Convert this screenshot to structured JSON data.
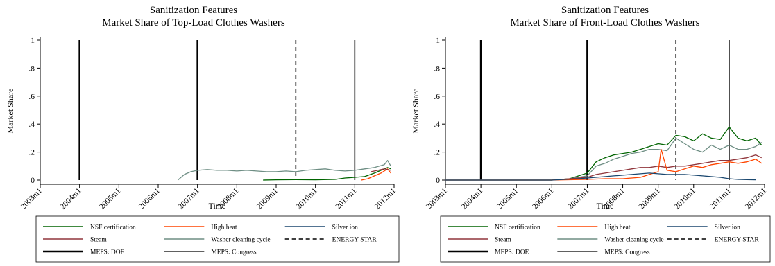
{
  "colors": {
    "nsf": "#006400",
    "high_heat": "#ff4500",
    "silver_ion": "#1a476f",
    "steam": "#90353b",
    "washer_cleaning": "#6e8e84",
    "marker": "#000000"
  },
  "chart_data": [
    {
      "type": "line",
      "title": "Sanitization Features",
      "subtitle": "Market Share of Top-Load Clothes Washers",
      "xlabel": "Time",
      "ylabel": "Market Share",
      "x_ticks": [
        "2003m1",
        "2004m1",
        "2005m1",
        "2006m1",
        "2007m1",
        "2008m1",
        "2009m1",
        "2010m1",
        "2011m1",
        "2012m1"
      ],
      "y_ticks": [
        "0",
        ".2",
        ".4",
        ".6",
        ".8",
        "1"
      ],
      "xlim": [
        "2003m1",
        "2012m1"
      ],
      "ylim": [
        0,
        1
      ],
      "grid": false,
      "legend_position": "bottom",
      "legend": [
        "NSF certification",
        "High heat",
        "Silver ion",
        "Steam",
        "Washer cleaning cycle",
        "ENERGY STAR",
        "MEPS: DOE",
        "MEPS: Congress"
      ],
      "vertical_markers": [
        {
          "name": "MEPS: DOE",
          "x": "2004m1",
          "style": "thick"
        },
        {
          "name": "MEPS: DOE",
          "x": "2007m1",
          "style": "thick"
        },
        {
          "name": "ENERGY STAR",
          "x": "2009m7",
          "style": "dashed"
        },
        {
          "name": "MEPS: Congress",
          "x": "2011m1",
          "style": "thin"
        }
      ],
      "series": [
        {
          "name": "Washer cleaning cycle",
          "color": "#6e8e84",
          "x": [
            "2006m7",
            "2006m9",
            "2006m11",
            "2007m1",
            "2007m4",
            "2007m7",
            "2007m10",
            "2008m1",
            "2008m4",
            "2008m7",
            "2008m10",
            "2009m1",
            "2009m4",
            "2009m7",
            "2009m10",
            "2010m1",
            "2010m4",
            "2010m7",
            "2010m10",
            "2011m1",
            "2011m4",
            "2011m7",
            "2011m10",
            "2011m11",
            "2011m12"
          ],
          "y": [
            0,
            0.04,
            0.06,
            0.07,
            0.075,
            0.07,
            0.07,
            0.065,
            0.07,
            0.065,
            0.06,
            0.06,
            0.065,
            0.06,
            0.07,
            0.075,
            0.08,
            0.07,
            0.065,
            0.07,
            0.08,
            0.09,
            0.11,
            0.14,
            0.1
          ]
        },
        {
          "name": "NSF certification",
          "color": "#006400",
          "x": [
            "2008m9",
            "2009m1",
            "2009m7",
            "2010m1",
            "2010m7",
            "2010m10",
            "2011m1",
            "2011m4",
            "2011m7",
            "2011m9",
            "2011m11",
            "2011m12"
          ],
          "y": [
            0,
            0.002,
            0.003,
            0.002,
            0.005,
            0.015,
            0.02,
            0.025,
            0.05,
            0.07,
            0.09,
            0.08
          ]
        },
        {
          "name": "High heat",
          "color": "#ff4500",
          "x": [
            "2011m3",
            "2011m5",
            "2011m7",
            "2011m9",
            "2011m11",
            "2011m12"
          ],
          "y": [
            0,
            0.01,
            0.03,
            0.05,
            0.08,
            0.05
          ]
        },
        {
          "name": "Steam",
          "color": "#90353b",
          "x": [
            "2011m6",
            "2011m8",
            "2011m10",
            "2011m12"
          ],
          "y": [
            0.06,
            0.07,
            0.08,
            0.07
          ]
        }
      ]
    },
    {
      "type": "line",
      "title": "Sanitization Features",
      "subtitle": "Market Share of Front-Load Clothes Washers",
      "xlabel": "Time",
      "ylabel": "Market Share",
      "x_ticks": [
        "2003m1",
        "2004m1",
        "2005m1",
        "2006m1",
        "2007m1",
        "2008m1",
        "2009m1",
        "2010m1",
        "2011m1",
        "2012m1"
      ],
      "y_ticks": [
        "0",
        ".2",
        ".4",
        ".6",
        ".8",
        "1"
      ],
      "xlim": [
        "2003m1",
        "2012m1"
      ],
      "ylim": [
        0,
        1
      ],
      "grid": false,
      "legend_position": "bottom",
      "legend": [
        "NSF certification",
        "High heat",
        "Silver ion",
        "Steam",
        "Washer cleaning cycle",
        "ENERGY STAR",
        "MEPS: DOE",
        "MEPS: Congress"
      ],
      "vertical_markers": [
        {
          "name": "MEPS: DOE",
          "x": "2004m1",
          "style": "thick"
        },
        {
          "name": "MEPS: DOE",
          "x": "2007m1",
          "style": "thick"
        },
        {
          "name": "ENERGY STAR",
          "x": "2009m7",
          "style": "dashed"
        },
        {
          "name": "MEPS: Congress",
          "x": "2011m1",
          "style": "thin"
        }
      ],
      "series": [
        {
          "name": "NSF certification",
          "color": "#006400",
          "x": [
            "2003m1",
            "2004m1",
            "2005m1",
            "2006m1",
            "2006m7",
            "2007m1",
            "2007m4",
            "2007m7",
            "2007m10",
            "2008m1",
            "2008m4",
            "2008m7",
            "2008m10",
            "2009m1",
            "2009m4",
            "2009m7",
            "2009m10",
            "2010m1",
            "2010m4",
            "2010m7",
            "2010m10",
            "2011m1",
            "2011m4",
            "2011m7",
            "2011m10",
            "2011m12"
          ],
          "y": [
            0,
            0,
            0,
            0,
            0.01,
            0.05,
            0.13,
            0.16,
            0.18,
            0.19,
            0.2,
            0.22,
            0.24,
            0.26,
            0.25,
            0.32,
            0.31,
            0.28,
            0.33,
            0.3,
            0.29,
            0.38,
            0.3,
            0.28,
            0.3,
            0.25
          ]
        },
        {
          "name": "Washer cleaning cycle",
          "color": "#6e8e84",
          "x": [
            "2003m1",
            "2004m1",
            "2005m1",
            "2006m1",
            "2006m7",
            "2007m1",
            "2007m4",
            "2007m7",
            "2007m10",
            "2008m1",
            "2008m4",
            "2008m7",
            "2008m10",
            "2009m1",
            "2009m4",
            "2009m7",
            "2009m10",
            "2010m1",
            "2010m4",
            "2010m7",
            "2010m10",
            "2011m1",
            "2011m4",
            "2011m7",
            "2011m10",
            "2011m12"
          ],
          "y": [
            0,
            0,
            0,
            0,
            0.01,
            0.03,
            0.1,
            0.12,
            0.15,
            0.17,
            0.19,
            0.2,
            0.22,
            0.22,
            0.21,
            0.3,
            0.26,
            0.22,
            0.2,
            0.25,
            0.22,
            0.25,
            0.22,
            0.22,
            0.24,
            0.27
          ]
        },
        {
          "name": "Steam",
          "color": "#90353b",
          "x": [
            "2003m1",
            "2004m1",
            "2005m1",
            "2006m1",
            "2006m7",
            "2007m1",
            "2007m4",
            "2007m7",
            "2007m10",
            "2008m1",
            "2008m4",
            "2008m7",
            "2008m10",
            "2009m1",
            "2009m4",
            "2009m7",
            "2009m10",
            "2010m1",
            "2010m4",
            "2010m7",
            "2010m10",
            "2011m1",
            "2011m4",
            "2011m7",
            "2011m10",
            "2011m12"
          ],
          "y": [
            0,
            0,
            0,
            0,
            0.01,
            0.02,
            0.04,
            0.05,
            0.06,
            0.07,
            0.08,
            0.09,
            0.09,
            0.1,
            0.09,
            0.1,
            0.1,
            0.11,
            0.12,
            0.13,
            0.14,
            0.14,
            0.15,
            0.16,
            0.18,
            0.16
          ]
        },
        {
          "name": "High heat",
          "color": "#ff4500",
          "x": [
            "2003m1",
            "2004m1",
            "2005m1",
            "2006m1",
            "2007m1",
            "2007m7",
            "2008m1",
            "2008m7",
            "2008m10",
            "2009m1",
            "2009m2",
            "2009m4",
            "2009m7",
            "2009m10",
            "2010m1",
            "2010m4",
            "2010m7",
            "2010m10",
            "2011m1",
            "2011m4",
            "2011m7",
            "2011m10",
            "2011m12"
          ],
          "y": [
            0,
            0,
            0,
            0,
            0.005,
            0.01,
            0.01,
            0.02,
            0.04,
            0.06,
            0.22,
            0.07,
            0.06,
            0.08,
            0.1,
            0.09,
            0.11,
            0.12,
            0.13,
            0.12,
            0.13,
            0.15,
            0.12
          ]
        },
        {
          "name": "Silver ion",
          "color": "#1a476f",
          "x": [
            "2003m1",
            "2004m1",
            "2005m1",
            "2006m1",
            "2006m10",
            "2007m4",
            "2007m10",
            "2008m4",
            "2008m10",
            "2009m4",
            "2009m10",
            "2010m4",
            "2010m10",
            "2011m1",
            "2011m4",
            "2011m7",
            "2011m10"
          ],
          "y": [
            0,
            0,
            0,
            0,
            0.01,
            0.02,
            0.03,
            0.04,
            0.05,
            0.04,
            0.04,
            0.03,
            0.02,
            0.01,
            0.005,
            0.003,
            0.002
          ]
        }
      ]
    }
  ]
}
